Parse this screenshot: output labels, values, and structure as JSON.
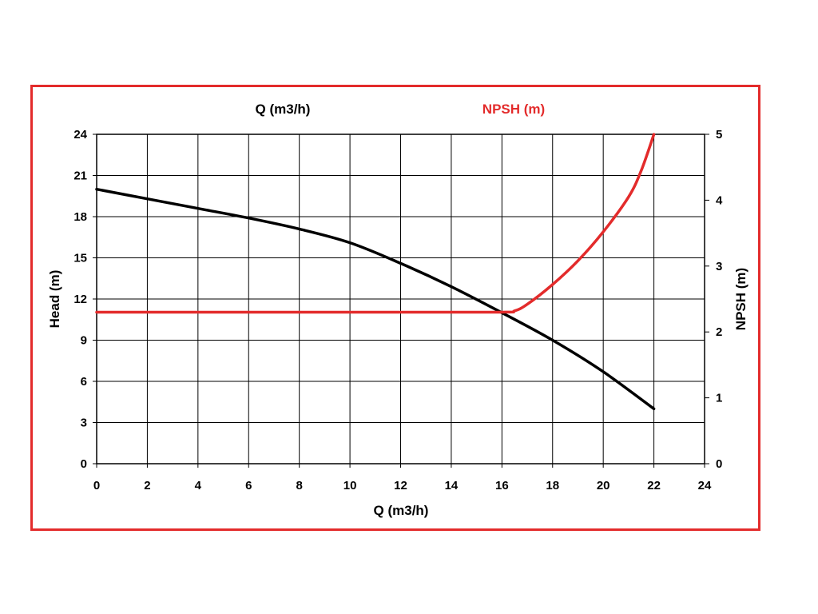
{
  "chart_data": {
    "type": "line",
    "legend": {
      "flow_label": "Q (m3/h)",
      "npsh_label": "NPSH (m)"
    },
    "xlabel": "Q (m3/h)",
    "ylabel": "Head (m)",
    "y2label": "NPSH (m)",
    "xlim": [
      0,
      24
    ],
    "ylim": [
      0,
      24
    ],
    "y2lim": [
      0,
      5
    ],
    "xticks": [
      0,
      2,
      4,
      6,
      8,
      10,
      12,
      14,
      16,
      18,
      20,
      22,
      24
    ],
    "yticks": [
      0,
      3,
      6,
      9,
      12,
      15,
      18,
      21,
      24
    ],
    "y2ticks": [
      0,
      1,
      2,
      3,
      4,
      5
    ],
    "grid": true,
    "series": [
      {
        "name": "Q (m3/h)",
        "axis": "left",
        "color": "#000000",
        "x": [
          0,
          2,
          4,
          6,
          8,
          10,
          12,
          14,
          16,
          18,
          20,
          22
        ],
        "y": [
          20,
          19.3,
          18.6,
          17.9,
          17.1,
          16.1,
          14.6,
          12.9,
          11.0,
          9.0,
          6.7,
          4.0
        ]
      },
      {
        "name": "NPSH (m)",
        "axis": "right",
        "color": "#e32b2b",
        "x": [
          0,
          4,
          8,
          12,
          16,
          16.5,
          17,
          18,
          19,
          20,
          21,
          21.5,
          22
        ],
        "y": [
          2.3,
          2.3,
          2.3,
          2.3,
          2.3,
          2.32,
          2.42,
          2.72,
          3.08,
          3.52,
          4.05,
          4.45,
          5.0
        ]
      }
    ]
  },
  "colors": {
    "frame": "#e32b2b",
    "npsh": "#e32b2b",
    "head": "#000000",
    "grid": "#000000"
  }
}
